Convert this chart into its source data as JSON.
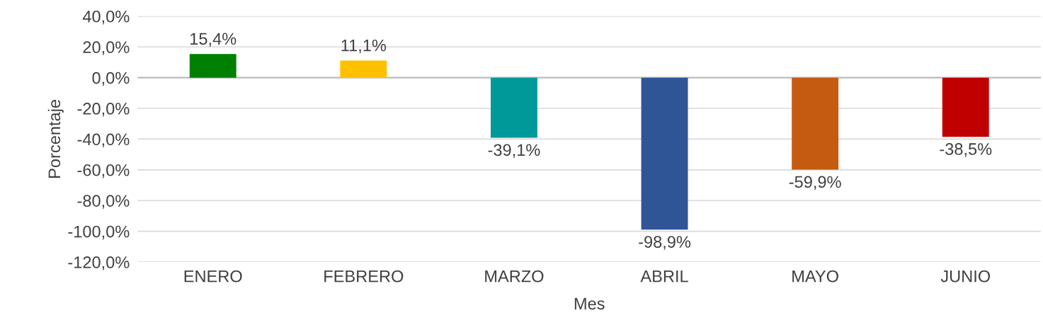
{
  "chart_data": {
    "type": "bar",
    "xlabel": "Mes",
    "ylabel": "Porcentaje",
    "categories": [
      "ENERO",
      "FEBRERO",
      "MARZO",
      "ABRIL",
      "MAYO",
      "JUNIO"
    ],
    "values": [
      15.4,
      11.1,
      -39.1,
      -98.9,
      -59.9,
      -38.5
    ],
    "colors": [
      "#008000",
      "#ffc000",
      "#009999",
      "#2f5597",
      "#c55a11",
      "#c00000"
    ],
    "value_labels": [
      "15,4%",
      "11,1%",
      "-39,1%",
      "-98,9%",
      "-59,9%",
      "-38,5%"
    ],
    "ylim": [
      -120,
      40
    ],
    "yticks": [
      {
        "value": 40,
        "label": "40,0%"
      },
      {
        "value": 20,
        "label": "20,0%"
      },
      {
        "value": 0,
        "label": "0,0%"
      },
      {
        "value": -20,
        "label": "-20,0%"
      },
      {
        "value": -40,
        "label": "-40,0%"
      },
      {
        "value": -60,
        "label": "-60,0%"
      },
      {
        "value": -80,
        "label": "-80,0%"
      },
      {
        "value": -100,
        "label": "-100,0%"
      },
      {
        "value": -120,
        "label": "-120,0%"
      }
    ],
    "grid": "y",
    "legend": false
  }
}
